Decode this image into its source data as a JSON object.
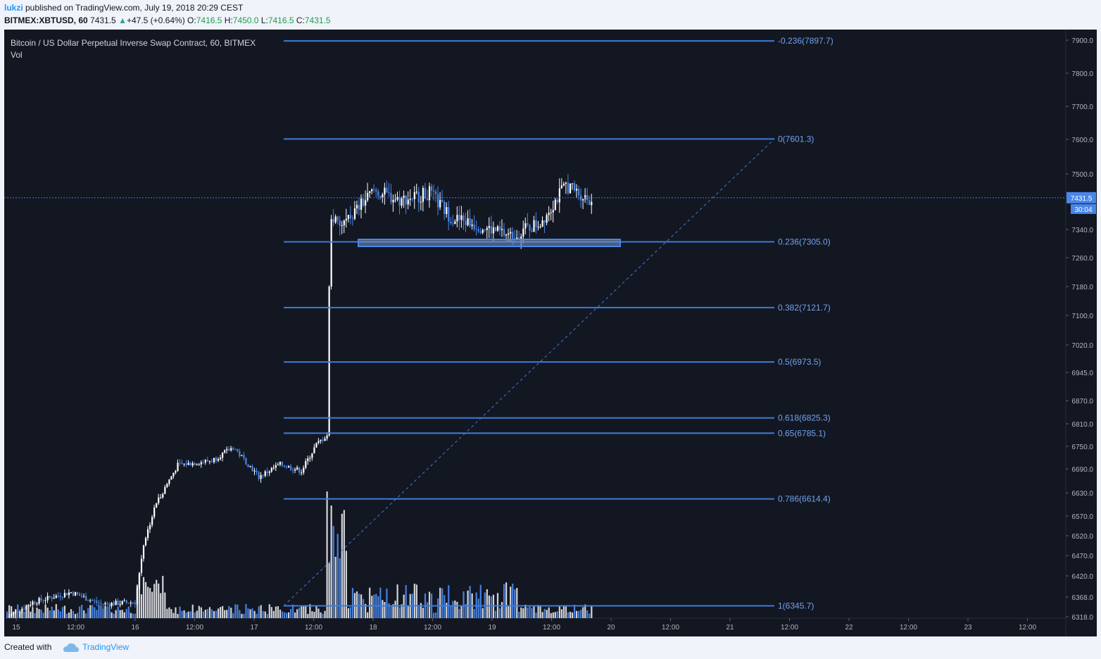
{
  "header": {
    "author": "lukzi",
    "published_text": " published on TradingView.com, July 19, 2018 20:29 CEST",
    "symbol": "BITMEX:XBTUSD, 60",
    "last": "7431.5",
    "change_arrow": "▲",
    "change": "+47.5 (+0.64%)",
    "o_label": "O:",
    "o": "7416.5",
    "h_label": "H:",
    "h": "7450.0",
    "l_label": "L:",
    "l": "7416.5",
    "c_label": "C:",
    "c": "7431.5"
  },
  "footer": {
    "created_with": "Created with",
    "brand": "TradingView"
  },
  "chart_data": {
    "type": "candlestick",
    "title": "Bitcoin / US Dollar Perpetual Inverse Swap Contract, 60, BITMEX",
    "subtitle": "Vol",
    "colors": {
      "background": "#131722",
      "up": "#ffffff",
      "down": "#4a86e8",
      "fib": "#3d7bd8",
      "price_line": "#3d7bd8",
      "axis_text": "#b2b5be"
    },
    "y_ticks": [
      7900.0,
      7800.0,
      7700.0,
      7600.0,
      7500.0,
      7340.0,
      7260.0,
      7180.0,
      7100.0,
      7020.0,
      6945.0,
      6870.0,
      6810.0,
      6750.0,
      6690.0,
      6630.0,
      6570.0,
      6520.0,
      6470.0,
      6420.0,
      6368.0,
      6318.0
    ],
    "y_tick_labels": [
      "7900.0",
      "7800.0",
      "7700.0",
      "7600.0",
      "7500.0",
      "7340.0",
      "7260.0",
      "7180.0",
      "7100.0",
      "7020.0",
      "6945.0",
      "6870.0",
      "6810.0",
      "6750.0",
      "6690.0",
      "6630.0",
      "6570.0",
      "6520.0",
      "6470.0",
      "6420.0",
      "6368.0",
      "6318.0"
    ],
    "x_ticks": [
      "15",
      "12:00",
      "16",
      "12:00",
      "17",
      "12:00",
      "18",
      "12:00",
      "19",
      "12:00",
      "20",
      "12:00",
      "21",
      "12:00",
      "22",
      "12:00",
      "23",
      "12:00"
    ],
    "last_price": "7431.5",
    "countdown": "30:04",
    "fib_levels": [
      {
        "label": "-0.236(7897.7)",
        "price": 7897.7
      },
      {
        "label": "0(7601.3)",
        "price": 7601.3
      },
      {
        "label": "0.236(7305.0)",
        "price": 7305.0
      },
      {
        "label": "0.382(7121.7)",
        "price": 7121.7
      },
      {
        "label": "0.5(6973.5)",
        "price": 6973.5
      },
      {
        "label": "0.618(6825.3)",
        "price": 6825.3
      },
      {
        "label": "0.65(6785.1)",
        "price": 6785.1
      },
      {
        "label": "0.786(6614.4)",
        "price": 6614.4
      },
      {
        "label": "1(6345.7)",
        "price": 6345.7
      }
    ],
    "support_zone": [
      7292,
      7312
    ]
  }
}
